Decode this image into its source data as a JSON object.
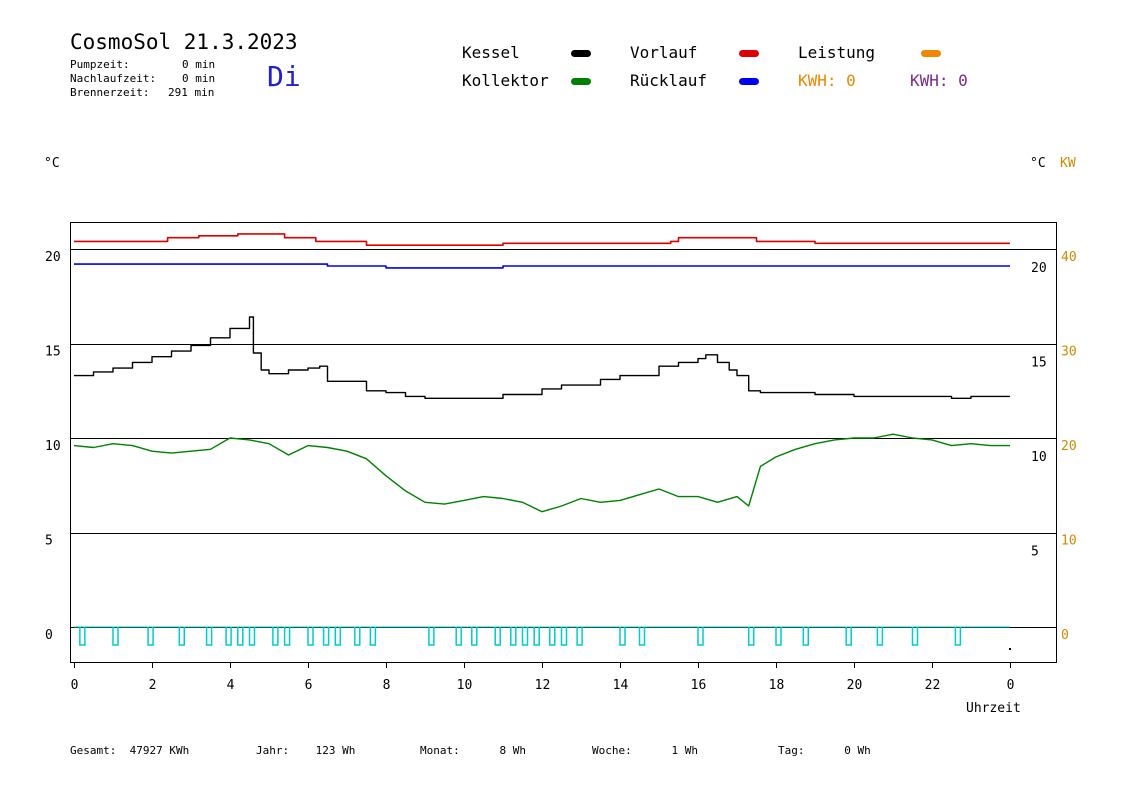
{
  "header": {
    "title": "CosmoSol 21.3.2023",
    "day": "Di",
    "stats": [
      {
        "label": "Pumpzeit:",
        "value": "0 min"
      },
      {
        "label": "Nachlaufzeit:",
        "value": "0 min"
      },
      {
        "label": "Brennerzeit:",
        "value": "291 min"
      }
    ]
  },
  "legend": {
    "kessel": "Kessel",
    "kollektor": "Kollektor",
    "vorlauf": "Vorlauf",
    "ruecklauf": "Rücklauf",
    "leistung": "Leistung",
    "kwh1": "KWH: 0",
    "kwh2": "KWH: 0"
  },
  "units": {
    "left": "°C",
    "right_c": "°C",
    "right_kw": "KW",
    "xlabel": "Uhrzeit"
  },
  "footer": [
    {
      "label": "Gesamt:",
      "value": "47927 KWh"
    },
    {
      "label": "Jahr:",
      "value": "123 Wh"
    },
    {
      "label": "Monat:",
      "value": "8 Wh"
    },
    {
      "label": "Woche:",
      "value": "1 Wh"
    },
    {
      "label": "Tag:",
      "value": "0 Wh"
    }
  ],
  "colors": {
    "kessel": "#000000",
    "kollektor": "#008000",
    "vorlauf": "#dd0000",
    "ruecklauf": "#0000ee",
    "leistung": "#ee8800",
    "kwh2": "#7a2a8a",
    "pump": "#00cccc",
    "day": "#2222cc"
  },
  "chart_data": {
    "type": "line",
    "xlabel": "Uhrzeit",
    "ylabel": "°C",
    "x_ticks": [
      "0",
      "2",
      "4",
      "6",
      "8",
      "10",
      "12",
      "14",
      "16",
      "18",
      "20",
      "22",
      "0"
    ],
    "xlim": [
      0,
      24
    ],
    "ylim": [
      -1.5,
      22
    ],
    "y_ticks_left": [
      "20",
      "15",
      "10",
      "5",
      "0"
    ],
    "y_ticks_right_c": [
      "20",
      "15",
      "10",
      "5"
    ],
    "y_ticks_right_kw": [
      "40",
      "30",
      "20",
      "10",
      "0"
    ],
    "grid": "horizontal",
    "series": [
      {
        "name": "Vorlauf",
        "color": "#dd0000",
        "x": [
          0,
          2.2,
          2.4,
          3.2,
          4.2,
          5.4,
          6.2,
          7.5,
          8.8,
          11.0,
          13.0,
          15.3,
          15.5,
          17.5,
          19.0,
          22.0,
          24.0
        ],
        "y": [
          20.4,
          20.4,
          20.6,
          20.7,
          20.8,
          20.6,
          20.4,
          20.2,
          20.2,
          20.3,
          20.3,
          20.4,
          20.6,
          20.4,
          20.3,
          20.3,
          20.3
        ]
      },
      {
        "name": "Rücklauf",
        "color": "#0000ee",
        "x": [
          0,
          3.0,
          6.5,
          8.0,
          9.5,
          11.0,
          14.5,
          17.5,
          20.0,
          24.0
        ],
        "y": [
          19.2,
          19.2,
          19.1,
          19.0,
          19.0,
          19.1,
          19.1,
          19.1,
          19.1,
          19.1
        ]
      },
      {
        "name": "Kessel",
        "color": "#000000",
        "x": [
          0,
          0.5,
          1.0,
          1.5,
          2.0,
          2.5,
          3.0,
          3.5,
          4.0,
          4.5,
          4.6,
          4.8,
          5.0,
          5.5,
          6.0,
          6.3,
          6.5,
          7.0,
          7.5,
          8.0,
          8.5,
          9.0,
          10.0,
          11.0,
          12.0,
          12.5,
          13.0,
          13.5,
          14.0,
          15.0,
          15.5,
          16.0,
          16.2,
          16.5,
          16.8,
          17.0,
          17.3,
          17.6,
          18.0,
          19.0,
          20.0,
          21.0,
          22.0,
          22.5,
          23.0,
          24.0
        ],
        "y": [
          13.3,
          13.5,
          13.7,
          14.0,
          14.3,
          14.6,
          14.9,
          15.3,
          15.8,
          16.4,
          14.5,
          13.6,
          13.4,
          13.6,
          13.7,
          13.8,
          13.0,
          13.0,
          12.5,
          12.4,
          12.2,
          12.1,
          12.1,
          12.3,
          12.6,
          12.8,
          12.8,
          13.1,
          13.3,
          13.8,
          14.0,
          14.2,
          14.4,
          14.0,
          13.6,
          13.3,
          12.5,
          12.4,
          12.4,
          12.3,
          12.2,
          12.2,
          12.2,
          12.1,
          12.2,
          12.2
        ]
      },
      {
        "name": "Kollektor",
        "color": "#008000",
        "x": [
          0,
          0.5,
          1.0,
          1.5,
          2.0,
          2.5,
          3.0,
          3.5,
          4.0,
          4.5,
          5.0,
          5.5,
          6.0,
          6.5,
          7.0,
          7.5,
          8.0,
          8.5,
          9.0,
          9.5,
          10.0,
          10.5,
          11.0,
          11.5,
          12.0,
          12.5,
          13.0,
          13.5,
          14.0,
          14.5,
          15.0,
          15.5,
          16.0,
          16.5,
          17.0,
          17.3,
          17.6,
          18.0,
          18.5,
          19.0,
          19.5,
          20.0,
          20.5,
          21.0,
          21.5,
          22.0,
          22.5,
          23.0,
          23.5,
          24.0
        ],
        "y": [
          9.6,
          9.5,
          9.7,
          9.6,
          9.3,
          9.2,
          9.3,
          9.4,
          10.0,
          9.9,
          9.7,
          9.1,
          9.6,
          9.5,
          9.3,
          8.9,
          8.0,
          7.2,
          6.6,
          6.5,
          6.7,
          6.9,
          6.8,
          6.6,
          6.1,
          6.4,
          6.8,
          6.6,
          6.7,
          7.0,
          7.3,
          6.9,
          6.9,
          6.6,
          6.9,
          6.4,
          8.5,
          9.0,
          9.4,
          9.7,
          9.9,
          10.0,
          10.0,
          10.2,
          10.0,
          9.9,
          9.6,
          9.7,
          9.6,
          9.6
        ]
      },
      {
        "name": "Pumpe",
        "color": "#00cccc",
        "x": [
          0.15,
          1.0,
          1.9,
          2.7,
          3.4,
          3.9,
          4.2,
          4.5,
          5.1,
          5.4,
          6.0,
          6.4,
          6.7,
          7.2,
          7.6,
          9.1,
          9.8,
          10.2,
          10.8,
          11.2,
          11.5,
          11.8,
          12.2,
          12.5,
          12.9,
          14.0,
          14.5,
          16.0,
          17.3,
          18.0,
          18.7,
          19.8,
          20.6,
          21.5,
          22.6
        ],
        "y": [
          0.0,
          0.0,
          0.0,
          0.0,
          0.0,
          0.0,
          0.0,
          0.0,
          0.0,
          0.0,
          0.0,
          0.0,
          0.0,
          0.0,
          0.0,
          0.0,
          0.0,
          0.0,
          0.0,
          0.0,
          0.0,
          0.0,
          0.0,
          0.0,
          0.0,
          0.0,
          0.0,
          0.0,
          0.0,
          0.0,
          0.0,
          0.0,
          0.0,
          0.0,
          0.0
        ]
      }
    ]
  }
}
